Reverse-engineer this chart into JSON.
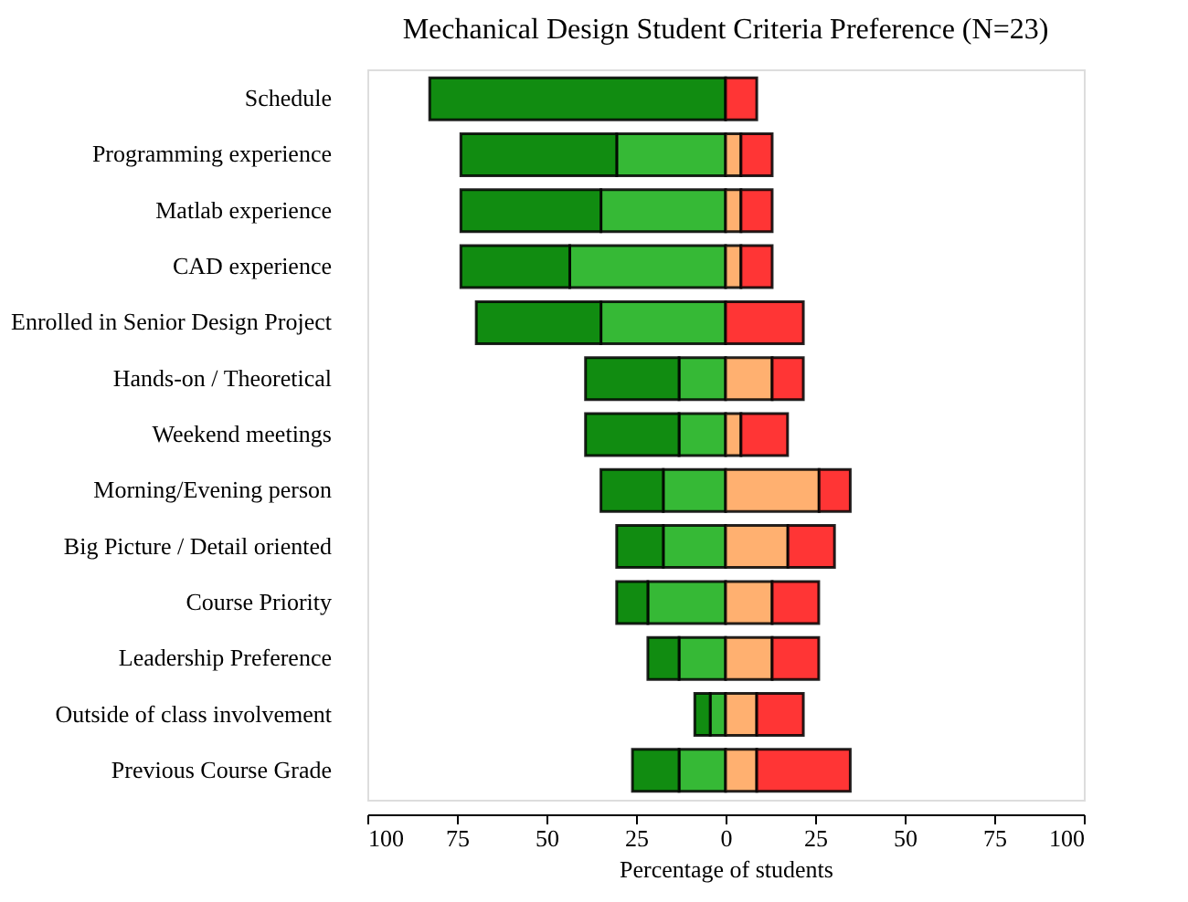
{
  "chart_data": {
    "type": "bar",
    "orientation": "horizontal",
    "stacked": true,
    "title": "Mechanical Design Student Criteria Preference (N=23)",
    "xlabel": "Percentage of students",
    "categories": [
      "Schedule",
      "Programming experience",
      "Matlab experience",
      "CAD experience",
      "Enrolled in Senior Design Project",
      "Hands-on / Theoretical",
      "Weekend meetings",
      "Morning/Evening person",
      "Big Picture / Detail oriented",
      "Course Priority",
      "Leadership Preference",
      "Outside of class involvement",
      "Previous Course Grade"
    ],
    "series": [
      {
        "color": "#36b936",
        "values": [
          0,
          -30.4,
          -34.8,
          -43.5,
          -34.8,
          -13.0,
          -13.0,
          -17.4,
          -17.4,
          -21.7,
          -13.0,
          -4.3,
          -13.0
        ]
      },
      {
        "color": "#118c11",
        "values": [
          -82.6,
          -43.5,
          -39.1,
          -30.4,
          -34.8,
          -26.1,
          -26.1,
          -17.4,
          -13.0,
          -8.7,
          -8.7,
          -4.3,
          -13.0
        ]
      },
      {
        "color": "#ffb070",
        "values": [
          0,
          4.3,
          4.3,
          4.3,
          0,
          13.0,
          4.3,
          26.1,
          17.4,
          13.0,
          13.0,
          8.7,
          8.7
        ]
      },
      {
        "color": "#ff3535",
        "values": [
          8.7,
          8.7,
          8.7,
          8.7,
          21.7,
          8.7,
          13.0,
          8.7,
          13.0,
          13.0,
          13.0,
          13.0,
          26.1
        ]
      }
    ],
    "xlim": [
      -100,
      100
    ],
    "xticks": [
      {
        "value": -100,
        "label": "100"
      },
      {
        "value": -75,
        "label": "75"
      },
      {
        "value": -50,
        "label": "50"
      },
      {
        "value": -25,
        "label": "25"
      },
      0,
      25,
      50,
      75,
      100
    ],
    "grid": false
  }
}
